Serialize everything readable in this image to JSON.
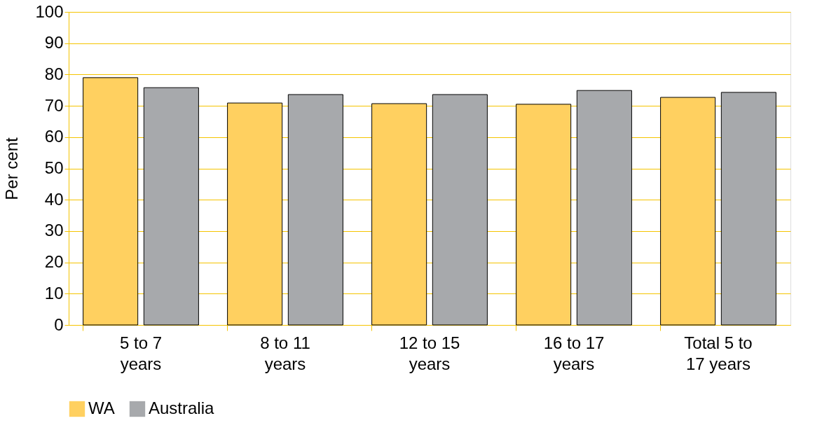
{
  "chart_data": {
    "type": "bar",
    "ylabel": "Per cent",
    "categories": [
      "5 to 7 years",
      "8 to 11 years",
      "12 to 15 years",
      "16 to 17 years",
      "Total 5 to 17 years"
    ],
    "series": [
      {
        "name": "WA",
        "color": "#ffd060",
        "values": [
          79.0,
          70.9,
          70.7,
          70.5,
          72.7
        ]
      },
      {
        "name": "Australia",
        "color": "#a7a9ac",
        "values": [
          75.8,
          73.6,
          73.6,
          74.9,
          74.3
        ]
      }
    ],
    "ylim": [
      0,
      100
    ],
    "yticks": [
      0,
      10,
      20,
      30,
      40,
      50,
      60,
      70,
      80,
      90,
      100
    ],
    "grid": "y",
    "legend": "bottom"
  }
}
